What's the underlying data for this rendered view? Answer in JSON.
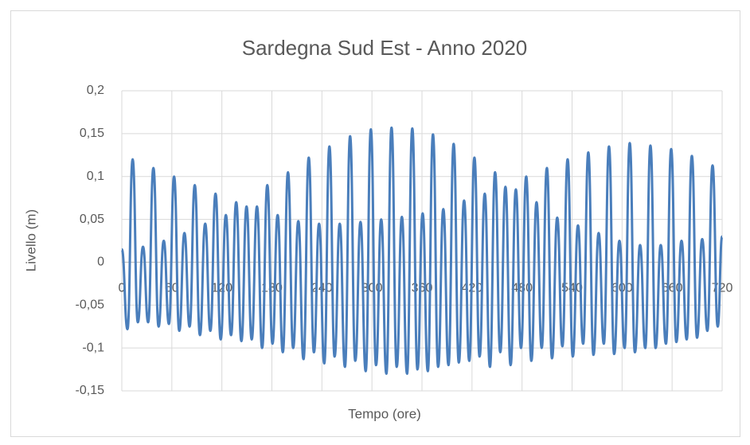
{
  "chart_data": {
    "type": "line",
    "title": "Sardegna Sud Est - Anno 2020",
    "x_label": "Tempo (ore)",
    "y_label": "Livello (m)",
    "grid": true,
    "xlim": [
      0,
      720
    ],
    "xticks": [
      0,
      60,
      120,
      180,
      240,
      300,
      360,
      420,
      480,
      540,
      600,
      660,
      720
    ],
    "ylim": [
      -0.15,
      0.2
    ],
    "yticks": [
      {
        "value": -0.15,
        "label": "-0,15"
      },
      {
        "value": -0.1,
        "label": "-0,1"
      },
      {
        "value": -0.05,
        "label": "-0,05"
      },
      0,
      {
        "value": 0.05,
        "label": "0,05"
      },
      {
        "value": 0.1,
        "label": "0,1"
      },
      {
        "value": 0.15,
        "label": "0,15"
      },
      {
        "value": 0.2,
        "label": "0,2"
      }
    ],
    "x": [
      0,
      6.8,
      13.0,
      19.2,
      25.4,
      31.6,
      37.9,
      44.1,
      50.3,
      56.5,
      62.7,
      68.9,
      75.1,
      81.3,
      87.5,
      93.7,
      100.0,
      106.2,
      112.4,
      118.6,
      124.8,
      131.0,
      137.2,
      143.4,
      149.6,
      155.8,
      162.1,
      168.3,
      174.5,
      180.7,
      186.9,
      193.1,
      199.3,
      205.5,
      211.7,
      217.9,
      224.2,
      230.4,
      236.6,
      242.8,
      249.0,
      255.2,
      261.4,
      267.6,
      273.8,
      280.0,
      286.3,
      292.5,
      298.7,
      304.9,
      311.1,
      317.3,
      323.5,
      329.7,
      335.9,
      342.1,
      348.4,
      354.6,
      360.8,
      367.0,
      373.2,
      379.4,
      385.6,
      391.8,
      398.0,
      404.2,
      410.5,
      416.7,
      422.9,
      429.1,
      435.3,
      441.5,
      447.7,
      453.9,
      460.1,
      466.3,
      472.6,
      478.8,
      485.0,
      491.2,
      497.4,
      503.6,
      509.8,
      516.0,
      522.2,
      528.4,
      534.7,
      540.9,
      547.1,
      553.3,
      559.5,
      565.7,
      571.9,
      578.1,
      584.3,
      590.5,
      596.8,
      603.0,
      609.2,
      615.4,
      621.6,
      627.8,
      634.0,
      640.2,
      646.4,
      652.6,
      658.9,
      665.1,
      671.3,
      677.5,
      683.7,
      689.9,
      696.1,
      702.3,
      708.5,
      714.7,
      720
    ],
    "series": [
      {
        "name": "Livello",
        "color": "#4a7ebb",
        "values": [
          0.015,
          -0.078,
          0.12,
          -0.07,
          0.018,
          -0.07,
          0.11,
          -0.075,
          0.025,
          -0.072,
          0.1,
          -0.08,
          0.034,
          -0.075,
          0.09,
          -0.085,
          0.045,
          -0.08,
          0.08,
          -0.09,
          0.055,
          -0.085,
          0.07,
          -0.092,
          0.065,
          -0.09,
          0.065,
          -0.1,
          0.09,
          -0.095,
          0.055,
          -0.105,
          0.105,
          -0.1,
          0.048,
          -0.113,
          0.122,
          -0.105,
          0.045,
          -0.118,
          0.135,
          -0.11,
          0.045,
          -0.122,
          0.147,
          -0.115,
          0.047,
          -0.127,
          0.155,
          -0.12,
          0.05,
          -0.13,
          0.157,
          -0.122,
          0.053,
          -0.13,
          0.156,
          -0.125,
          0.057,
          -0.127,
          0.149,
          -0.122,
          0.062,
          -0.12,
          0.138,
          -0.117,
          0.072,
          -0.115,
          0.122,
          -0.11,
          0.08,
          -0.122,
          0.105,
          -0.105,
          0.088,
          -0.12,
          0.085,
          -0.1,
          0.1,
          -0.115,
          0.07,
          -0.1,
          0.11,
          -0.112,
          0.052,
          -0.098,
          0.12,
          -0.11,
          0.043,
          -0.095,
          0.128,
          -0.108,
          0.034,
          -0.095,
          0.135,
          -0.107,
          0.025,
          -0.1,
          0.139,
          -0.105,
          0.02,
          -0.1,
          0.136,
          -0.1,
          0.02,
          -0.095,
          0.132,
          -0.093,
          0.025,
          -0.09,
          0.124,
          -0.088,
          0.027,
          -0.08,
          0.113,
          -0.075,
          0.03
        ]
      }
    ]
  }
}
